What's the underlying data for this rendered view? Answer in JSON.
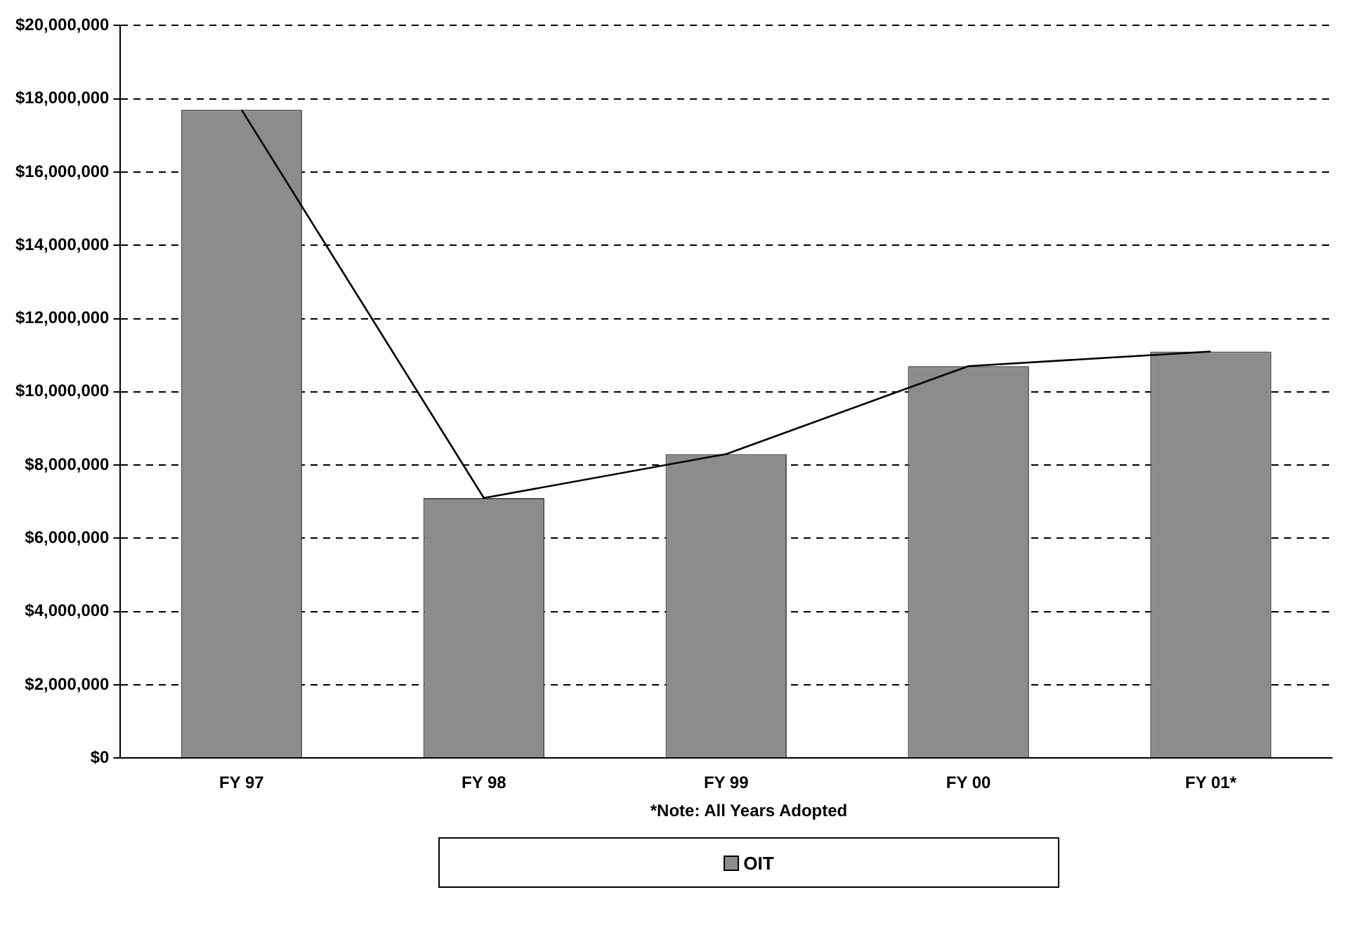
{
  "chart_data": {
    "type": "bar",
    "categories": [
      "FY 97",
      "FY 98",
      "FY 99",
      "FY 00",
      "FY 01*"
    ],
    "series": [
      {
        "name": "OIT",
        "color": "#8c8c8c",
        "values": [
          17700000,
          7100000,
          8300000,
          10700000,
          11100000
        ]
      },
      {
        "type": "line",
        "color": "#000000",
        "values": [
          17700000,
          7100000,
          8300000,
          10700000,
          11100000
        ]
      }
    ],
    "ylim": [
      0,
      20000000
    ],
    "yticks": [
      {
        "value": 0,
        "label": "$0"
      },
      {
        "value": 2000000,
        "label": "$2,000,000"
      },
      {
        "value": 4000000,
        "label": "$4,000,000"
      },
      {
        "value": 6000000,
        "label": "$6,000,000"
      },
      {
        "value": 8000000,
        "label": "$8,000,000"
      },
      {
        "value": 10000000,
        "label": "$10,000,000"
      },
      {
        "value": 12000000,
        "label": "$12,000,000"
      },
      {
        "value": 14000000,
        "label": "$14,000,000"
      },
      {
        "value": 16000000,
        "label": "$16,000,000"
      },
      {
        "value": 18000000,
        "label": "$18,000,000"
      },
      {
        "value": 20000000,
        "label": "$20,000,000"
      }
    ],
    "grid": "y",
    "marker": "none",
    "legend": "bottom",
    "annotations": [
      "*Note: All Years Adopted"
    ]
  }
}
